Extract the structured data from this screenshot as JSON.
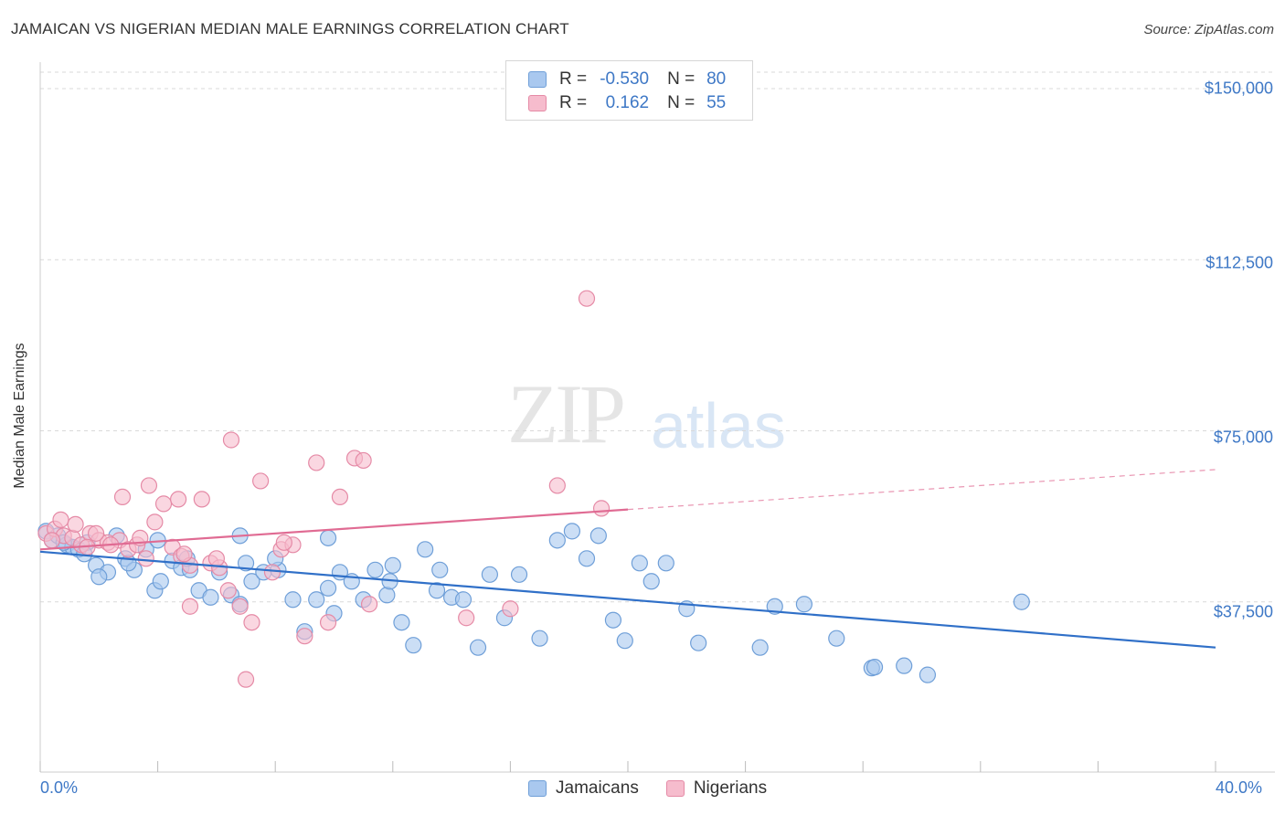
{
  "title": "JAMAICAN VS NIGERIAN MEDIAN MALE EARNINGS CORRELATION CHART",
  "source": "Source: ZipAtlas.com",
  "watermark": {
    "zip": "ZIP",
    "atlas": "atlas"
  },
  "legend": {
    "rows": [
      {
        "r_label": "R =",
        "r_value": "-0.530",
        "n_label": "N =",
        "n_value": "80"
      },
      {
        "r_label": "R =",
        "r_value": "0.162",
        "n_label": "N =",
        "n_value": "55"
      }
    ]
  },
  "colors": {
    "jamaicans_fill": "#a9c8ef",
    "jamaicans_stroke": "#6f9fd8",
    "jamaicans_line": "#3070c8",
    "nigerians_fill": "#f6bccd",
    "nigerians_stroke": "#e58aa6",
    "nigerians_line": "#e06b93",
    "grid": "#d9d9d9",
    "tick_text": "#3e78c6"
  },
  "chart_data": {
    "type": "scatter",
    "title": "JAMAICAN VS NIGERIAN MEDIAN MALE EARNINGS CORRELATION CHART",
    "xlabel": "",
    "ylabel": "Median Male Earnings",
    "xlim": [
      0,
      40
    ],
    "ylim": [
      0,
      153000
    ],
    "x_tick_labels": [
      "0.0%",
      "40.0%"
    ],
    "y_ticks": [
      37500,
      75000,
      112500,
      150000
    ],
    "y_tick_labels": [
      "$37,500",
      "$75,000",
      "$112,500",
      "$150,000"
    ],
    "grid": true,
    "legend_position": "bottom-center",
    "series": [
      {
        "name": "Jamaicans",
        "r": -0.53,
        "n": 80,
        "trend": {
          "x": [
            0,
            40
          ],
          "y": [
            48500,
            27500
          ],
          "dashed_from": null
        },
        "points": [
          [
            0.2,
            53000
          ],
          [
            0.4,
            51000
          ],
          [
            0.6,
            52000
          ],
          [
            0.9,
            50000
          ],
          [
            1.1,
            49500
          ],
          [
            1.3,
            49000
          ],
          [
            1.6,
            50500
          ],
          [
            1.9,
            45500
          ],
          [
            2.3,
            44000
          ],
          [
            2.6,
            52000
          ],
          [
            2.9,
            47000
          ],
          [
            3.2,
            44500
          ],
          [
            3.6,
            49000
          ],
          [
            3.9,
            40000
          ],
          [
            4.1,
            42000
          ],
          [
            4.5,
            46500
          ],
          [
            4.8,
            45000
          ],
          [
            5.1,
            44500
          ],
          [
            5.4,
            40000
          ],
          [
            5.8,
            38500
          ],
          [
            6.1,
            44000
          ],
          [
            6.5,
            39000
          ],
          [
            6.8,
            37000
          ],
          [
            7.2,
            42000
          ],
          [
            7.6,
            44000
          ],
          [
            8.1,
            44500
          ],
          [
            8.6,
            38000
          ],
          [
            9.0,
            31000
          ],
          [
            9.4,
            38000
          ],
          [
            9.8,
            40500
          ],
          [
            10.2,
            44000
          ],
          [
            10.6,
            42000
          ],
          [
            11.0,
            38000
          ],
          [
            11.4,
            44500
          ],
          [
            11.8,
            39000
          ],
          [
            12.3,
            33000
          ],
          [
            12.7,
            28000
          ],
          [
            13.1,
            49000
          ],
          [
            13.6,
            44500
          ],
          [
            14.0,
            38500
          ],
          [
            14.4,
            38000
          ],
          [
            14.9,
            27500
          ],
          [
            15.3,
            43500
          ],
          [
            15.8,
            34000
          ],
          [
            16.3,
            43500
          ],
          [
            17.0,
            29500
          ],
          [
            17.6,
            51000
          ],
          [
            18.1,
            53000
          ],
          [
            18.6,
            47000
          ],
          [
            19.0,
            52000
          ],
          [
            19.5,
            33500
          ],
          [
            19.9,
            29000
          ],
          [
            20.4,
            46000
          ],
          [
            20.8,
            42000
          ],
          [
            21.3,
            46000
          ],
          [
            22.0,
            36000
          ],
          [
            22.4,
            28500
          ],
          [
            24.5,
            27500
          ],
          [
            25.0,
            36500
          ],
          [
            26.0,
            37000
          ],
          [
            27.1,
            29500
          ],
          [
            28.3,
            23000
          ],
          [
            28.4,
            23200
          ],
          [
            29.4,
            23500
          ],
          [
            30.2,
            21500
          ],
          [
            33.4,
            37500
          ],
          [
            3.0,
            46000
          ],
          [
            2.0,
            43000
          ],
          [
            5.0,
            47000
          ],
          [
            7.0,
            46000
          ],
          [
            9.8,
            51500
          ],
          [
            11.9,
            42000
          ],
          [
            13.5,
            40000
          ],
          [
            6.8,
            52000
          ],
          [
            4.0,
            51000
          ],
          [
            1.5,
            48000
          ],
          [
            0.8,
            50500
          ],
          [
            8.0,
            47000
          ],
          [
            10.0,
            35000
          ],
          [
            12.0,
            45500
          ]
        ]
      },
      {
        "name": "Nigerians",
        "r": 0.162,
        "n": 55,
        "trend": {
          "x": [
            0,
            40
          ],
          "y": [
            49000,
            66500
          ],
          "dashed_from": 20
        },
        "points": [
          [
            0.2,
            52500
          ],
          [
            0.5,
            53500
          ],
          [
            0.8,
            52000
          ],
          [
            1.1,
            51500
          ],
          [
            1.4,
            50000
          ],
          [
            1.7,
            52500
          ],
          [
            2.0,
            51000
          ],
          [
            2.3,
            50500
          ],
          [
            2.7,
            51000
          ],
          [
            3.0,
            49000
          ],
          [
            3.3,
            50000
          ],
          [
            3.6,
            47000
          ],
          [
            3.9,
            55000
          ],
          [
            4.2,
            59000
          ],
          [
            4.5,
            49500
          ],
          [
            4.8,
            47500
          ],
          [
            5.1,
            45500
          ],
          [
            5.5,
            60000
          ],
          [
            5.8,
            46000
          ],
          [
            6.1,
            45000
          ],
          [
            6.5,
            73000
          ],
          [
            6.8,
            36500
          ],
          [
            7.2,
            33000
          ],
          [
            7.5,
            64000
          ],
          [
            7.9,
            44000
          ],
          [
            8.2,
            49000
          ],
          [
            8.6,
            50000
          ],
          [
            9.0,
            30000
          ],
          [
            9.4,
            68000
          ],
          [
            9.8,
            33000
          ],
          [
            10.2,
            60500
          ],
          [
            10.7,
            69000
          ],
          [
            11.2,
            37000
          ],
          [
            14.5,
            34000
          ],
          [
            16.0,
            36000
          ],
          [
            17.6,
            63000
          ],
          [
            18.6,
            104000
          ],
          [
            19.1,
            58000
          ],
          [
            6.4,
            40000
          ],
          [
            5.1,
            36500
          ],
          [
            4.7,
            60000
          ],
          [
            3.7,
            63000
          ],
          [
            2.8,
            60500
          ],
          [
            1.9,
            52500
          ],
          [
            1.2,
            54500
          ],
          [
            0.7,
            55500
          ],
          [
            0.4,
            51000
          ],
          [
            6.0,
            47000
          ],
          [
            7.0,
            20500
          ],
          [
            8.3,
            50500
          ],
          [
            3.4,
            51500
          ],
          [
            4.9,
            48000
          ],
          [
            2.4,
            50000
          ],
          [
            1.6,
            49500
          ],
          [
            11.0,
            68500
          ]
        ]
      }
    ]
  },
  "bottom_legend": [
    {
      "label": "Jamaicans"
    },
    {
      "label": "Nigerians"
    }
  ]
}
